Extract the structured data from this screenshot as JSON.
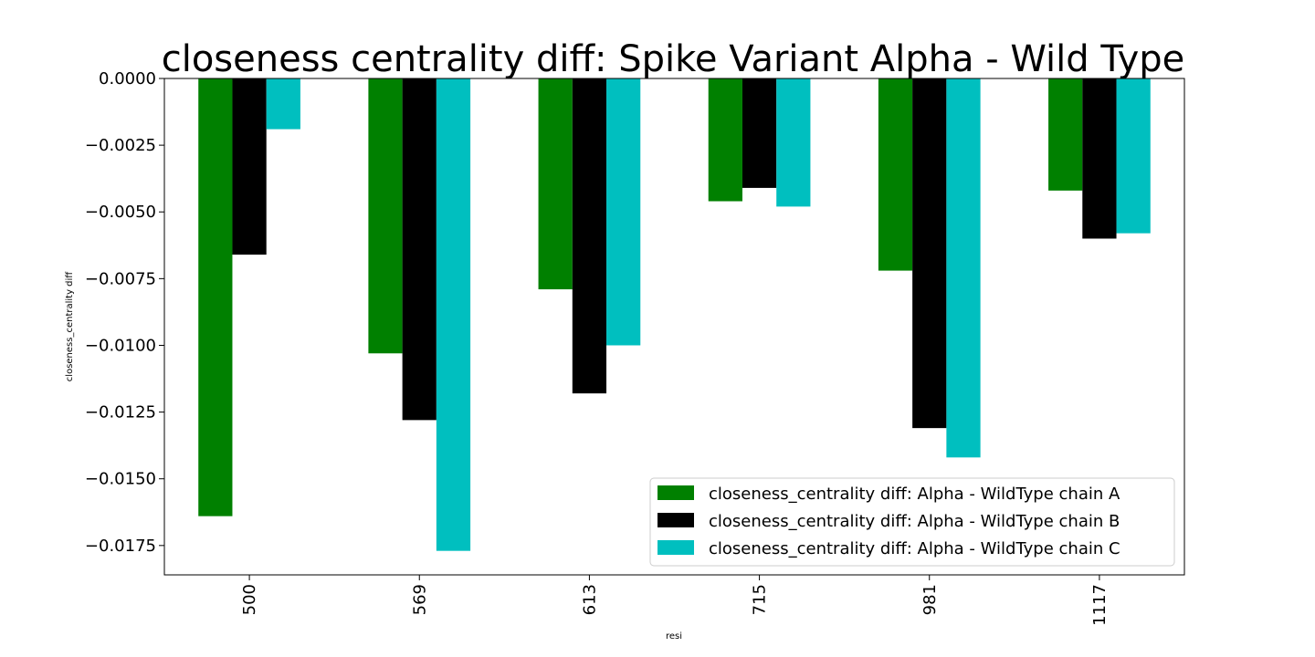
{
  "chart_data": {
    "type": "bar",
    "title": "closeness centrality diff: Spike Variant Alpha - Wild Type",
    "xlabel": "resi",
    "ylabel": "closeness_centrality diff",
    "categories": [
      "500",
      "569",
      "613",
      "715",
      "981",
      "1117"
    ],
    "series": [
      {
        "name": "closeness_centrality diff: Alpha - WildType chain A",
        "color": "#008000",
        "values": [
          -0.0164,
          -0.0103,
          -0.0079,
          -0.0046,
          -0.0072,
          -0.0042
        ]
      },
      {
        "name": "closeness_centrality diff: Alpha - WildType chain B",
        "color": "#000000",
        "values": [
          -0.0066,
          -0.0128,
          -0.0118,
          -0.0041,
          -0.0131,
          -0.006
        ]
      },
      {
        "name": "closeness_centrality diff: Alpha - WildType chain C",
        "color": "#00bfbf",
        "values": [
          -0.0019,
          -0.0177,
          -0.01,
          -0.0048,
          -0.0142,
          -0.0058
        ]
      }
    ],
    "yticks": [
      "0.0000",
      "−0.0025",
      "−0.0050",
      "−0.0075",
      "−0.0100",
      "−0.0125",
      "−0.0150",
      "−0.0175"
    ],
    "ytick_values": [
      0,
      -0.0025,
      -0.005,
      -0.0075,
      -0.01,
      -0.0125,
      -0.015,
      -0.0175
    ],
    "ylim": [
      -0.0186,
      0
    ],
    "grid": false,
    "legend_position": "lower-right"
  }
}
